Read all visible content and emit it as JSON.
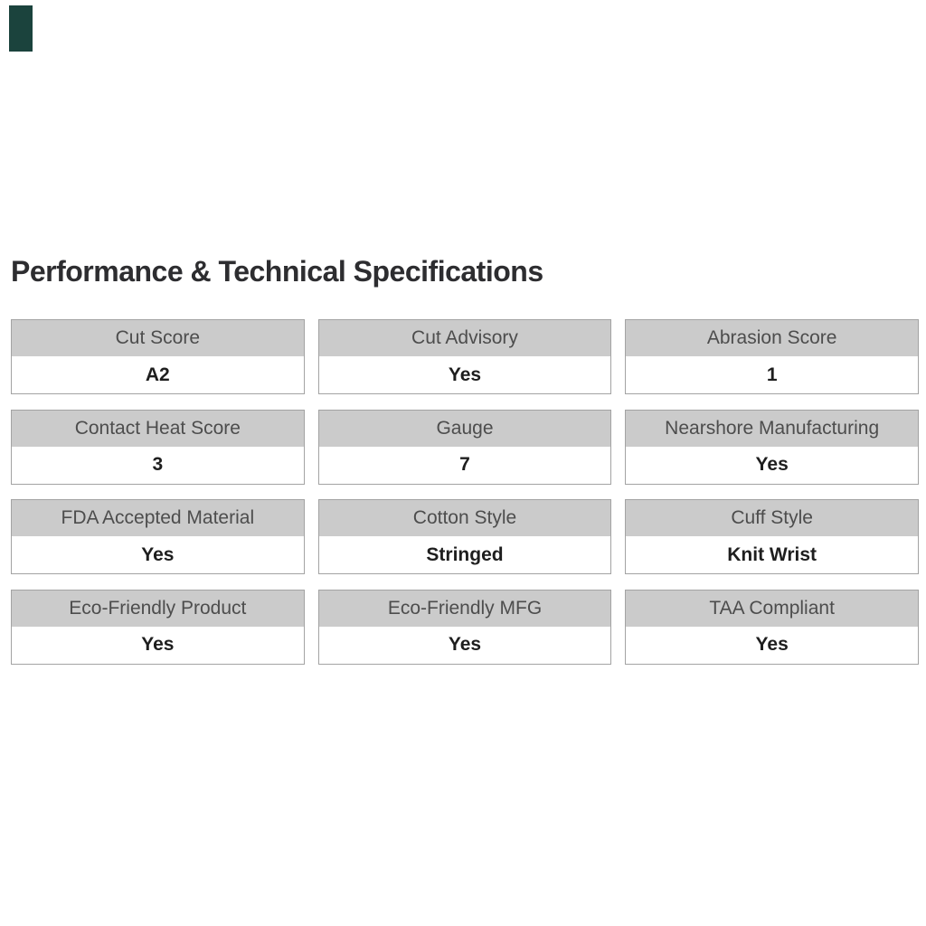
{
  "page": {
    "background": "#ffffff"
  },
  "swatch": {
    "name": "product-color-swatch",
    "color": "#1b433d"
  },
  "section": {
    "title": "Performance & Technical Specifications",
    "colors": {
      "title_text": "#2d2d30",
      "header_bg": "#cbcbcb",
      "header_text": "#4d4d4d",
      "value_text": "#1e1e1e",
      "card_border": "#a3a3a3"
    },
    "specs": [
      {
        "label": "Cut Score",
        "value": "A2"
      },
      {
        "label": "Cut Advisory",
        "value": "Yes"
      },
      {
        "label": "Abrasion Score",
        "value": "1"
      },
      {
        "label": "Contact Heat Score",
        "value": "3"
      },
      {
        "label": "Gauge",
        "value": "7"
      },
      {
        "label": "Nearshore Manufacturing",
        "value": "Yes"
      },
      {
        "label": "FDA Accepted Material",
        "value": "Yes"
      },
      {
        "label": "Cotton Style",
        "value": "Stringed"
      },
      {
        "label": "Cuff Style",
        "value": "Knit Wrist"
      },
      {
        "label": "Eco-Friendly Product",
        "value": "Yes"
      },
      {
        "label": "Eco-Friendly MFG",
        "value": "Yes"
      },
      {
        "label": "TAA Compliant",
        "value": "Yes"
      }
    ]
  }
}
